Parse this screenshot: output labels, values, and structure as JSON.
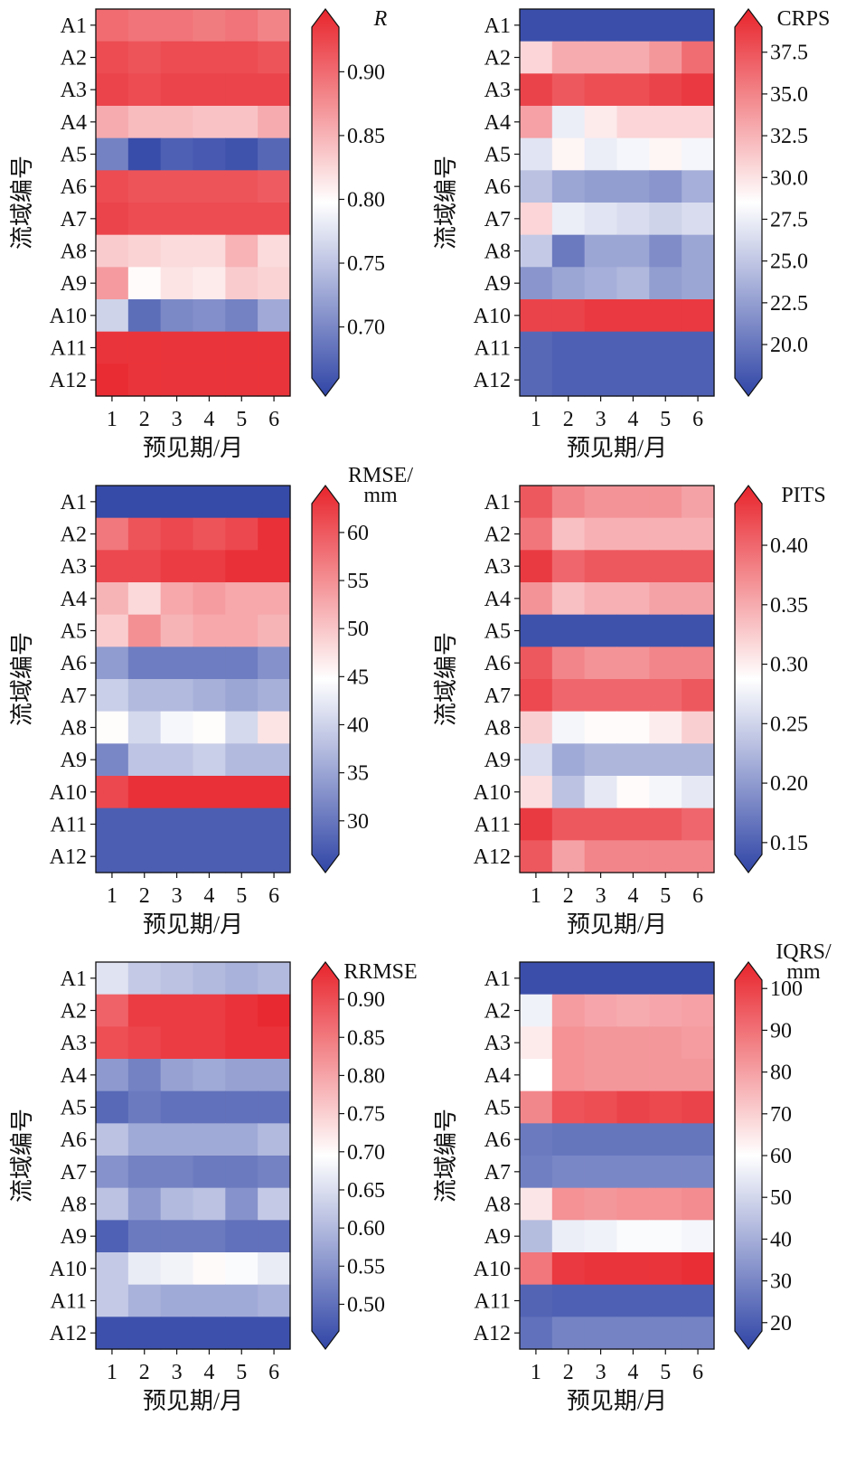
{
  "chart_data": [
    {
      "type": "heatmap",
      "title": "",
      "xlabel": "预见期/月",
      "ylabel": "流域编号",
      "colorbar_title": [
        "R"
      ],
      "colorbar_title_italic": true,
      "x_ticks": [
        "1",
        "2",
        "3",
        "4",
        "5",
        "6"
      ],
      "y_ticks": [
        "A1",
        "A2",
        "A3",
        "A4",
        "A5",
        "A6",
        "A7",
        "A8",
        "A9",
        "A10",
        "A11",
        "A12"
      ],
      "colorbar_range": [
        0.66,
        0.935
      ],
      "colorbar_ticks": [
        "0.70",
        "0.75",
        "0.80",
        "0.85",
        "0.90"
      ],
      "colormap": {
        "low": "#3045a6",
        "mid": "#ffffff",
        "high": "#e8242c"
      },
      "values": [
        [
          0.89,
          0.885,
          0.885,
          0.88,
          0.885,
          0.875
        ],
        [
          0.91,
          0.905,
          0.91,
          0.91,
          0.91,
          0.905
        ],
        [
          0.915,
          0.91,
          0.915,
          0.915,
          0.915,
          0.915
        ],
        [
          0.85,
          0.84,
          0.84,
          0.835,
          0.835,
          0.85
        ],
        [
          0.705,
          0.665,
          0.68,
          0.675,
          0.67,
          0.685
        ],
        [
          0.91,
          0.905,
          0.905,
          0.905,
          0.905,
          0.9
        ],
        [
          0.915,
          0.91,
          0.91,
          0.91,
          0.91,
          0.91
        ],
        [
          0.83,
          0.825,
          0.82,
          0.82,
          0.845,
          0.82
        ],
        [
          0.86,
          0.8,
          0.815,
          0.81,
          0.83,
          0.825
        ],
        [
          0.765,
          0.69,
          0.71,
          0.715,
          0.705,
          0.735
        ],
        [
          0.925,
          0.925,
          0.925,
          0.925,
          0.925,
          0.925
        ],
        [
          0.93,
          0.925,
          0.925,
          0.925,
          0.925,
          0.925
        ]
      ]
    },
    {
      "type": "heatmap",
      "title": "",
      "xlabel": "预见期/月",
      "ylabel": "流域编号",
      "colorbar_title": [
        "CRPS"
      ],
      "colorbar_title_italic": false,
      "x_ticks": [
        "1",
        "2",
        "3",
        "4",
        "5",
        "6"
      ],
      "y_ticks": [
        "A1",
        "A2",
        "A3",
        "A4",
        "A5",
        "A6",
        "A7",
        "A8",
        "A9",
        "A10",
        "A11",
        "A12"
      ],
      "colorbar_range": [
        18.0,
        39.0
      ],
      "colorbar_ticks": [
        "20.0",
        "22.5",
        "25.0",
        "27.5",
        "30.0",
        "32.5",
        "35.0",
        "37.5"
      ],
      "colormap": {
        "low": "#3045a6",
        "mid": "#ffffff",
        "high": "#e8242c"
      },
      "values": [
        [
          18.5,
          18.5,
          18.5,
          18.5,
          18.5,
          18.5
        ],
        [
          30.5,
          32.5,
          32.5,
          32.5,
          33.5,
          35.5
        ],
        [
          37.5,
          36.5,
          37.0,
          37.0,
          37.5,
          38.0
        ],
        [
          33.0,
          27.5,
          29.5,
          30.5,
          30.5,
          30.5
        ],
        [
          27.0,
          29.0,
          27.5,
          28.0,
          29.0,
          28.0
        ],
        [
          25.0,
          23.5,
          23.0,
          23.0,
          22.5,
          24.0
        ],
        [
          30.5,
          27.5,
          27.0,
          26.5,
          26.0,
          26.5
        ],
        [
          25.5,
          21.0,
          23.5,
          23.5,
          22.0,
          23.5
        ],
        [
          22.5,
          23.5,
          24.0,
          24.5,
          23.0,
          23.5
        ],
        [
          37.5,
          37.5,
          38.0,
          38.0,
          38.0,
          38.0
        ],
        [
          20.0,
          19.5,
          19.5,
          19.5,
          19.5,
          19.5
        ],
        [
          20.0,
          19.5,
          19.5,
          19.5,
          19.5,
          19.5
        ]
      ]
    },
    {
      "type": "heatmap",
      "title": "",
      "xlabel": "预见期/月",
      "ylabel": "流域编号",
      "colorbar_title": [
        "RMSE/",
        "mm"
      ],
      "colorbar_title_italic": false,
      "x_ticks": [
        "1",
        "2",
        "3",
        "4",
        "5",
        "6"
      ],
      "y_ticks": [
        "A1",
        "A2",
        "A3",
        "A4",
        "A5",
        "A6",
        "A7",
        "A8",
        "A9",
        "A10",
        "A11",
        "A12"
      ],
      "colorbar_range": [
        26.5,
        63.0
      ],
      "colorbar_ticks": [
        "30",
        "35",
        "40",
        "45",
        "50",
        "55",
        "60"
      ],
      "colormap": {
        "low": "#3045a6",
        "mid": "#ffffff",
        "high": "#e8242c"
      },
      "values": [
        [
          27,
          27,
          27,
          27,
          27,
          27
        ],
        [
          56,
          59,
          60,
          59,
          60,
          62
        ],
        [
          60,
          60,
          61,
          61,
          62,
          62
        ],
        [
          51,
          48,
          52,
          53,
          52,
          52
        ],
        [
          49,
          54,
          51,
          52,
          52,
          51
        ],
        [
          35,
          32,
          32,
          32,
          32,
          34
        ],
        [
          40,
          38,
          38,
          37,
          36,
          37
        ],
        [
          45,
          41,
          44,
          45,
          41,
          47
        ],
        [
          33,
          39,
          39,
          40,
          38,
          38
        ],
        [
          60,
          62,
          62,
          62,
          62,
          62
        ],
        [
          29,
          29,
          29,
          29,
          29,
          29
        ],
        [
          29,
          29,
          29,
          29,
          29,
          29
        ]
      ]
    },
    {
      "type": "heatmap",
      "title": "",
      "xlabel": "预见期/月",
      "ylabel": "流域编号",
      "colorbar_title": [
        "PITS"
      ],
      "colorbar_title_italic": false,
      "x_ticks": [
        "1",
        "2",
        "3",
        "4",
        "5",
        "6"
      ],
      "y_ticks": [
        "A1",
        "A2",
        "A3",
        "A4",
        "A5",
        "A6",
        "A7",
        "A8",
        "A9",
        "A10",
        "A11",
        "A12"
      ],
      "colorbar_range": [
        0.14,
        0.435
      ],
      "colorbar_ticks": [
        "0.15",
        "0.20",
        "0.25",
        "0.30",
        "0.35",
        "0.40"
      ],
      "colormap": {
        "low": "#3045a6",
        "mid": "#ffffff",
        "high": "#e8242c"
      },
      "values": [
        [
          0.4,
          0.37,
          0.36,
          0.36,
          0.36,
          0.35
        ],
        [
          0.38,
          0.33,
          0.34,
          0.34,
          0.34,
          0.34
        ],
        [
          0.42,
          0.39,
          0.4,
          0.4,
          0.4,
          0.4
        ],
        [
          0.36,
          0.33,
          0.34,
          0.34,
          0.35,
          0.35
        ],
        [
          0.15,
          0.15,
          0.15,
          0.15,
          0.15,
          0.15
        ],
        [
          0.4,
          0.37,
          0.36,
          0.36,
          0.37,
          0.37
        ],
        [
          0.41,
          0.39,
          0.39,
          0.39,
          0.39,
          0.4
        ],
        [
          0.32,
          0.28,
          0.29,
          0.29,
          0.3,
          0.32
        ],
        [
          0.26,
          0.22,
          0.23,
          0.23,
          0.23,
          0.23
        ],
        [
          0.31,
          0.24,
          0.27,
          0.29,
          0.28,
          0.27
        ],
        [
          0.42,
          0.4,
          0.4,
          0.4,
          0.4,
          0.39
        ],
        [
          0.4,
          0.35,
          0.37,
          0.37,
          0.37,
          0.37
        ]
      ]
    },
    {
      "type": "heatmap",
      "title": "",
      "xlabel": "预见期/月",
      "ylabel": "流域编号",
      "colorbar_title": [
        "RRMSE"
      ],
      "colorbar_title_italic": false,
      "x_ticks": [
        "1",
        "2",
        "3",
        "4",
        "5",
        "6"
      ],
      "y_ticks": [
        "A1",
        "A2",
        "A3",
        "A4",
        "A5",
        "A6",
        "A7",
        "A8",
        "A9",
        "A10",
        "A11",
        "A12"
      ],
      "colorbar_range": [
        0.465,
        0.925
      ],
      "colorbar_ticks": [
        "0.50",
        "0.55",
        "0.60",
        "0.65",
        "0.70",
        "0.75",
        "0.80",
        "0.85",
        "0.90"
      ],
      "colormap": {
        "low": "#3045a6",
        "mid": "#ffffff",
        "high": "#e8242c"
      },
      "values": [
        [
          0.66,
          0.63,
          0.62,
          0.61,
          0.6,
          0.61
        ],
        [
          0.86,
          0.9,
          0.9,
          0.9,
          0.91,
          0.92
        ],
        [
          0.88,
          0.89,
          0.9,
          0.9,
          0.91,
          0.91
        ],
        [
          0.57,
          0.54,
          0.58,
          0.59,
          0.58,
          0.58
        ],
        [
          0.51,
          0.53,
          0.52,
          0.52,
          0.52,
          0.52
        ],
        [
          0.62,
          0.59,
          0.59,
          0.59,
          0.59,
          0.61
        ],
        [
          0.56,
          0.54,
          0.54,
          0.53,
          0.53,
          0.54
        ],
        [
          0.62,
          0.57,
          0.61,
          0.62,
          0.56,
          0.63
        ],
        [
          0.5,
          0.53,
          0.53,
          0.53,
          0.52,
          0.52
        ],
        [
          0.63,
          0.67,
          0.68,
          0.7,
          0.69,
          0.67
        ],
        [
          0.63,
          0.6,
          0.59,
          0.59,
          0.59,
          0.6
        ],
        [
          0.48,
          0.48,
          0.48,
          0.48,
          0.48,
          0.48
        ]
      ]
    },
    {
      "type": "heatmap",
      "title": "",
      "xlabel": "预见期/月",
      "ylabel": "流域编号",
      "colorbar_title": [
        "IQRS/",
        "mm"
      ],
      "colorbar_title_italic": false,
      "x_ticks": [
        "1",
        "2",
        "3",
        "4",
        "5",
        "6"
      ],
      "y_ticks": [
        "A1",
        "A2",
        "A3",
        "A4",
        "A5",
        "A6",
        "A7",
        "A8",
        "A9",
        "A10",
        "A11",
        "A12"
      ],
      "colorbar_range": [
        18.0,
        102.0
      ],
      "colorbar_ticks": [
        "20",
        "30",
        "40",
        "50",
        "60",
        "70",
        "80",
        "90",
        "100"
      ],
      "colormap": {
        "low": "#3045a6",
        "mid": "#ffffff",
        "high": "#e8242c"
      },
      "values": [
        [
          20,
          20,
          20,
          20,
          20,
          20
        ],
        [
          57,
          79,
          77,
          76,
          77,
          78
        ],
        [
          64,
          81,
          80,
          80,
          80,
          79
        ],
        [
          60,
          81,
          80,
          80,
          80,
          80
        ],
        [
          83,
          93,
          94,
          96,
          95,
          96
        ],
        [
          30,
          29,
          29,
          29,
          29,
          29
        ],
        [
          31,
          33,
          33,
          33,
          33,
          33
        ],
        [
          65,
          81,
          80,
          81,
          81,
          82
        ],
        [
          45,
          56,
          57,
          59,
          59,
          58
        ],
        [
          86,
          98,
          99,
          99,
          99,
          100
        ],
        [
          25,
          24,
          24,
          24,
          24,
          24
        ],
        [
          28,
          32,
          32,
          32,
          32,
          32
        ]
      ]
    }
  ]
}
